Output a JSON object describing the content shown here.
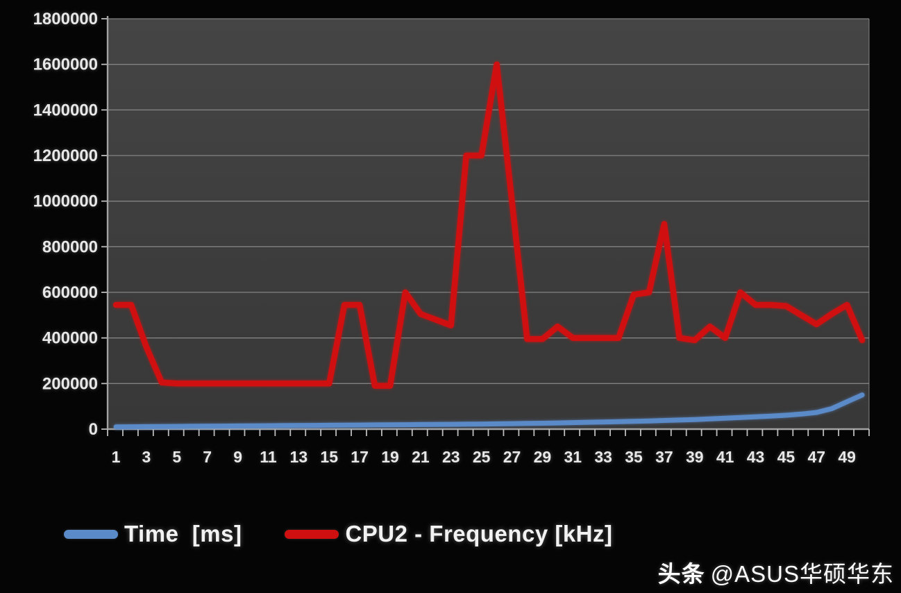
{
  "watermark": {
    "prefix": "头条",
    "handle": "@ASUS华硕华东"
  },
  "chart_data": {
    "type": "line",
    "title": "",
    "xlabel": "",
    "ylabel": "",
    "ylim": [
      0,
      1800000
    ],
    "n_points": 50,
    "x": [
      1,
      2,
      3,
      4,
      5,
      6,
      7,
      8,
      9,
      10,
      11,
      12,
      13,
      14,
      15,
      16,
      17,
      18,
      19,
      20,
      21,
      22,
      23,
      24,
      25,
      26,
      27,
      28,
      29,
      30,
      31,
      32,
      33,
      34,
      35,
      36,
      37,
      38,
      39,
      40,
      41,
      42,
      43,
      44,
      45,
      46,
      47,
      48,
      49,
      50
    ],
    "x_tick_labels": [
      1,
      3,
      5,
      7,
      9,
      11,
      13,
      15,
      17,
      19,
      21,
      23,
      25,
      27,
      29,
      31,
      33,
      35,
      37,
      39,
      41,
      43,
      45,
      47,
      49
    ],
    "y_ticks": [
      {
        "value": 0,
        "label": "0"
      },
      {
        "value": 200000,
        "label": "200000"
      },
      {
        "value": 400000,
        "label": "400000"
      },
      {
        "value": 600000,
        "label": "600000"
      },
      {
        "value": 800000,
        "label": "800000"
      },
      {
        "value": 1000000,
        "label": "1000000"
      },
      {
        "value": 1200000,
        "label": "1200000"
      },
      {
        "value": 1400000,
        "label": "1400000"
      },
      {
        "value": 1600000,
        "label": "1600000"
      },
      {
        "value": 1800000,
        "label": "1800000"
      }
    ],
    "grid": true,
    "legend_position": "bottom-left",
    "plot_background": "#3d3d3d",
    "gridline_color": "#8f8f8f",
    "series": [
      {
        "name": "Time  [ms]",
        "color": "#5b8ac8",
        "values": [
          10000,
          10500,
          11000,
          11500,
          12000,
          12500,
          13000,
          13500,
          14000,
          14500,
          15000,
          15500,
          16000,
          16500,
          17000,
          17500,
          18000,
          18500,
          19000,
          19500,
          20000,
          20500,
          21000,
          21500,
          22000,
          23000,
          24000,
          25000,
          26000,
          27000,
          28500,
          30000,
          31500,
          33000,
          34500,
          36000,
          38000,
          40000,
          42000,
          45000,
          48000,
          51000,
          54000,
          57000,
          61000,
          66000,
          73000,
          90000,
          120000,
          150000
        ]
      },
      {
        "name": "CPU2 - Frequency [kHz]",
        "color": "#d01010",
        "values": [
          545000,
          545000,
          360000,
          205000,
          200000,
          200000,
          200000,
          200000,
          200000,
          200000,
          200000,
          200000,
          200000,
          200000,
          200000,
          545000,
          545000,
          190000,
          190000,
          600000,
          505000,
          480000,
          455000,
          1200000,
          1200000,
          1600000,
          1000000,
          395000,
          395000,
          450000,
          400000,
          400000,
          400000,
          400000,
          590000,
          600000,
          900000,
          400000,
          390000,
          450000,
          400000,
          600000,
          545000,
          545000,
          540000,
          500000,
          460000,
          505000,
          545000,
          390000
        ]
      }
    ]
  }
}
